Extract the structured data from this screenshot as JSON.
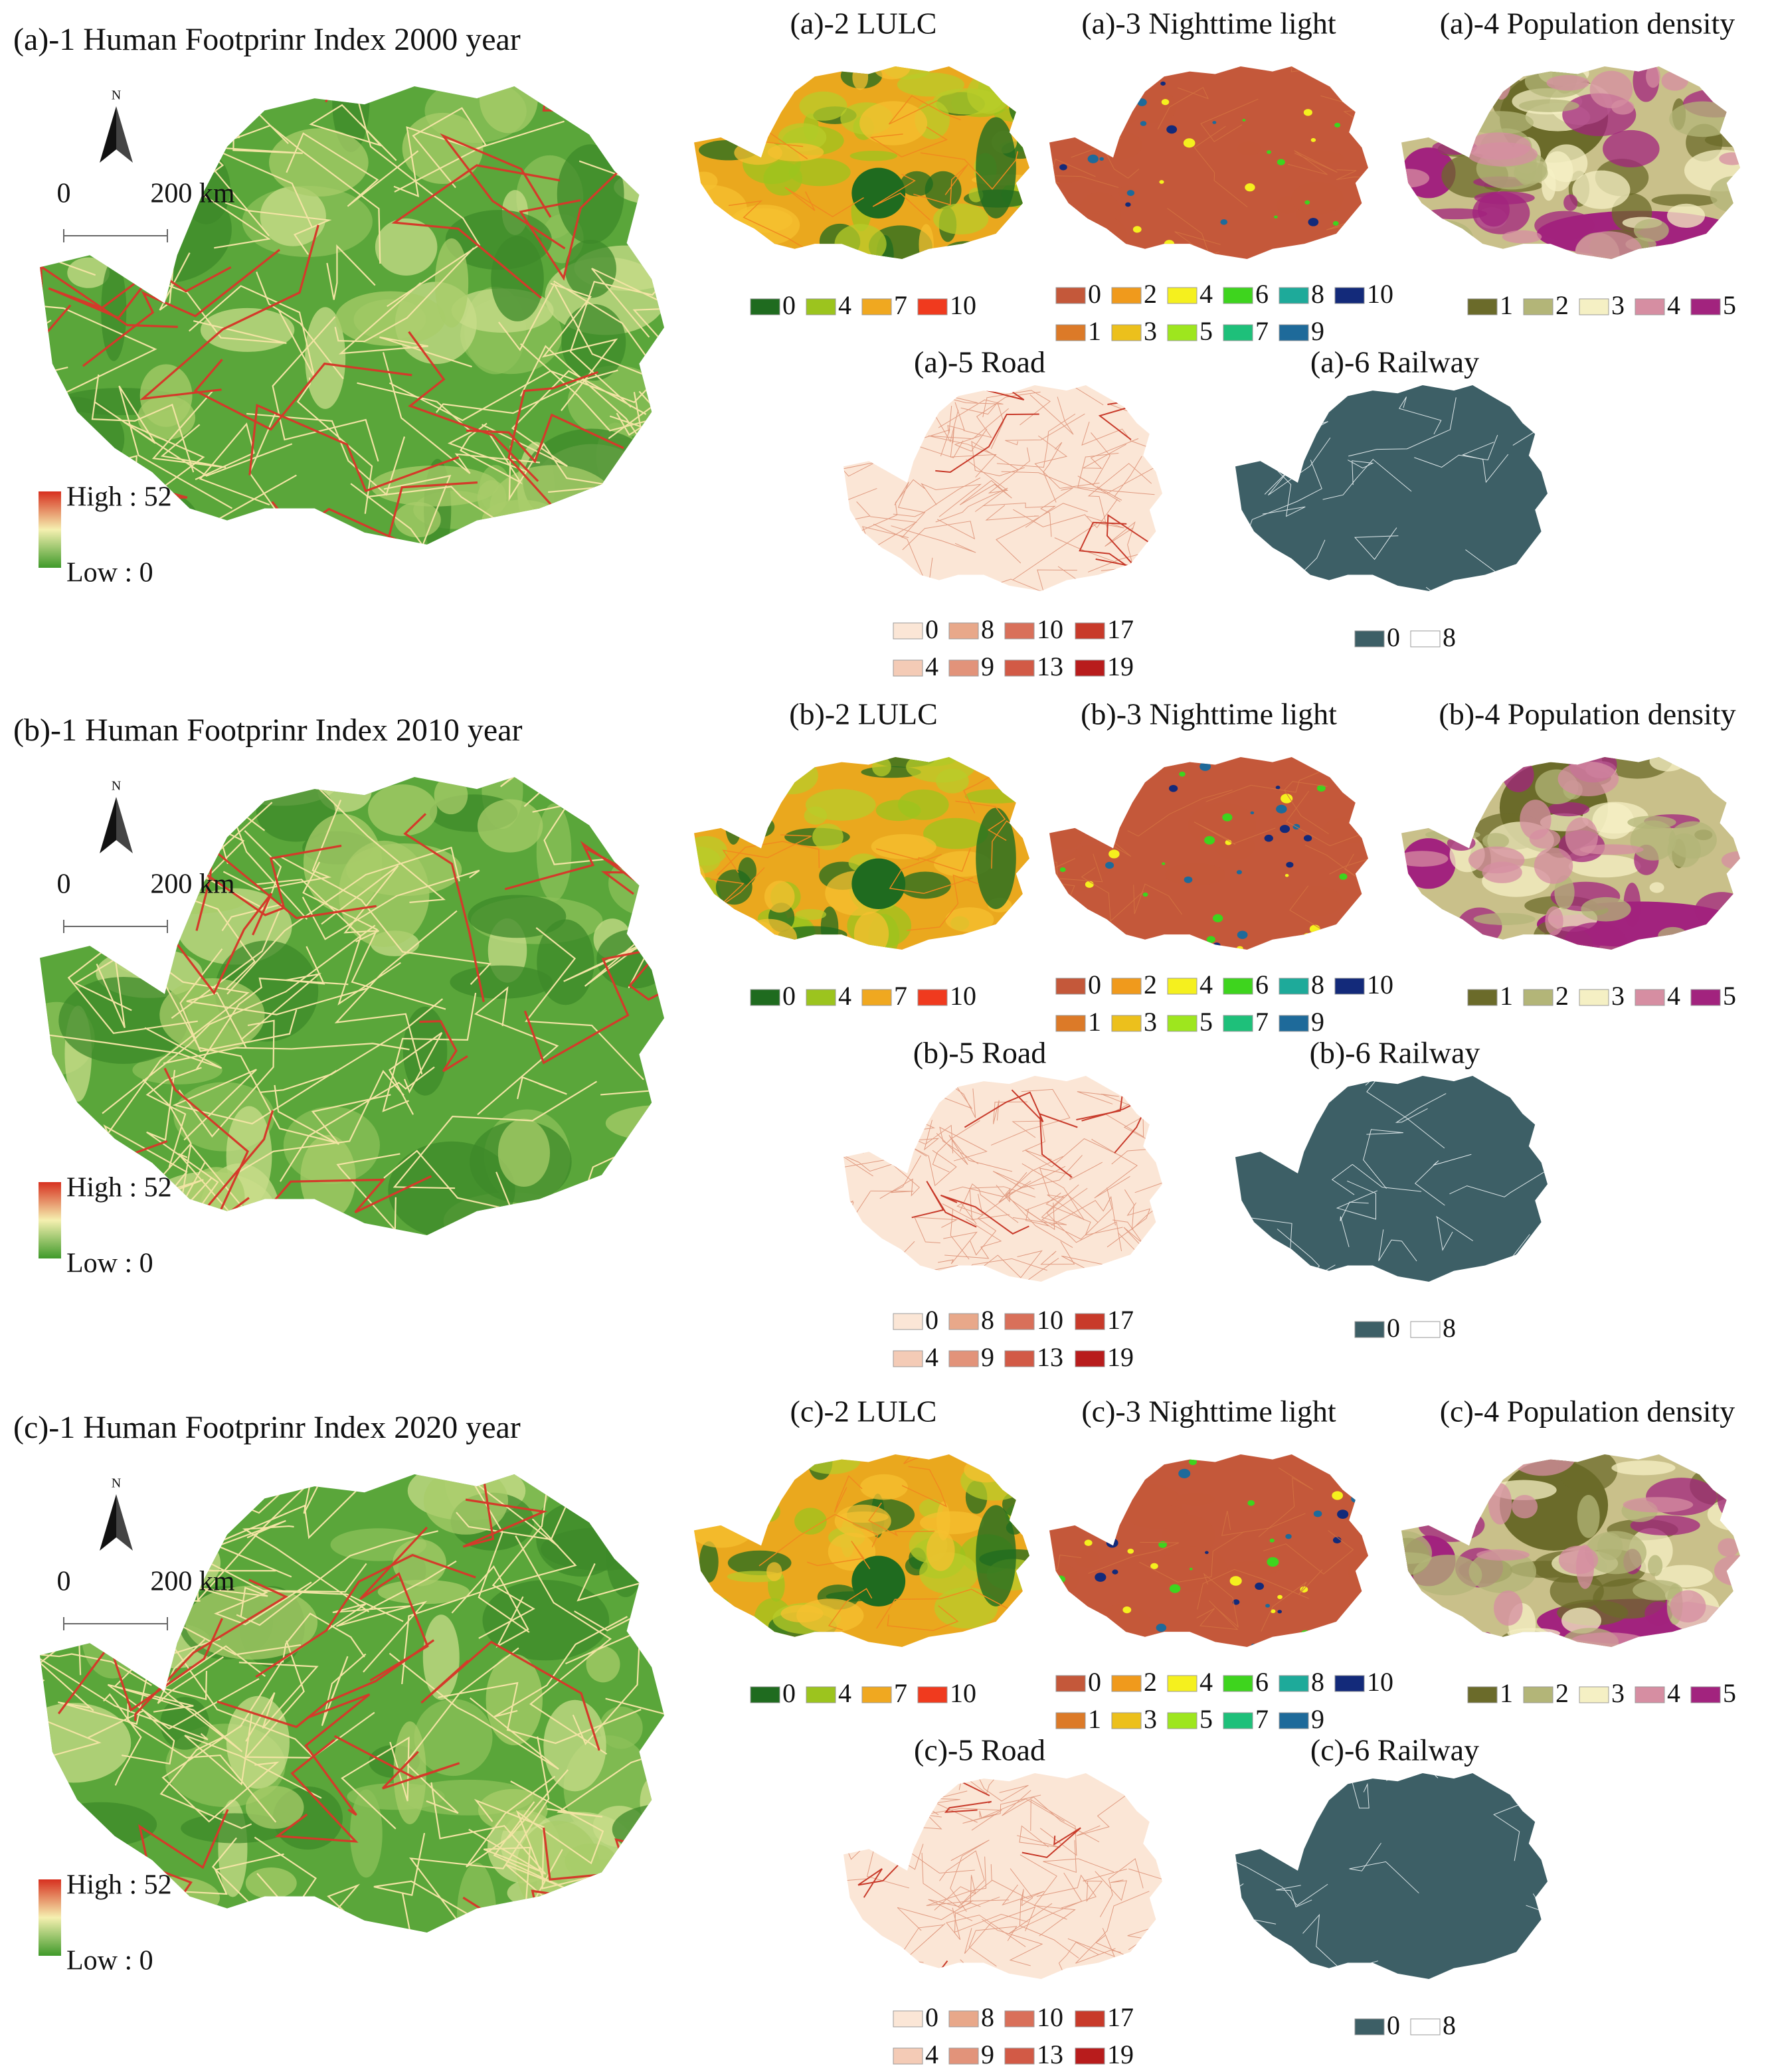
{
  "panels": [
    {
      "hfi": {
        "title": "(a)-1 Human Footprinr Index 2000 year",
        "north": "N",
        "scale_start": "0",
        "scale_end": "200 km",
        "legend_high": "High : 52",
        "legend_low": "Low : 0"
      },
      "lulc": {
        "title": "(a)-2 LULC",
        "legend": [
          [
            {
              "label": "0",
              "color": "#1f6b1f"
            },
            {
              "label": "4",
              "color": "#9cc41e"
            },
            {
              "label": "7",
              "color": "#f0a820"
            },
            {
              "label": "10",
              "color": "#f03a1e"
            }
          ]
        ]
      },
      "ntl": {
        "title": "(a)-3 Nighttime light",
        "legend": [
          [
            {
              "label": "0",
              "color": "#c4583a"
            },
            {
              "label": "2",
              "color": "#f09a1c"
            },
            {
              "label": "4",
              "color": "#f5f01e"
            },
            {
              "label": "6",
              "color": "#3ed41e"
            },
            {
              "label": "8",
              "color": "#1eaa9a"
            },
            {
              "label": "10",
              "color": "#132a7a"
            }
          ],
          [
            {
              "label": "1",
              "color": "#dc7a28"
            },
            {
              "label": "3",
              "color": "#ecc01c"
            },
            {
              "label": "5",
              "color": "#9ee61e"
            },
            {
              "label": "7",
              "color": "#1ec07a"
            },
            {
              "label": "9",
              "color": "#1e6a9a"
            }
          ]
        ]
      },
      "pop": {
        "title": "(a)-4 Population density",
        "legend": [
          [
            {
              "label": "1",
              "color": "#6b6b2a"
            },
            {
              "label": "2",
              "color": "#b3b578"
            },
            {
              "label": "3",
              "color": "#f5f0c4"
            },
            {
              "label": "4",
              "color": "#d68ea2"
            },
            {
              "label": "5",
              "color": "#a2237e"
            }
          ]
        ]
      },
      "road": {
        "title": "(a)-5 Road",
        "legend": [
          [
            {
              "label": "0",
              "color": "#fbe6d6"
            },
            {
              "label": "8",
              "color": "#e8a88a"
            },
            {
              "label": "10",
              "color": "#d9705a"
            },
            {
              "label": "17",
              "color": "#c83a2a"
            }
          ],
          [
            {
              "label": "4",
              "color": "#f4cbb6"
            },
            {
              "label": "9",
              "color": "#e2937a"
            },
            {
              "label": "13",
              "color": "#d25a46"
            },
            {
              "label": "19",
              "color": "#b81c1c"
            }
          ]
        ]
      },
      "rail": {
        "title": "(a)-6 Railway",
        "legend": [
          [
            {
              "label": "0",
              "color": "#3d5f66"
            },
            {
              "label": "8",
              "color": "#ffffff"
            }
          ]
        ]
      }
    },
    {
      "hfi": {
        "title": "(b)-1 Human Footprinr Index 2010 year",
        "north": "N",
        "scale_start": "0",
        "scale_end": "200 km",
        "legend_high": "High : 52",
        "legend_low": "Low : 0"
      },
      "lulc": {
        "title": "(b)-2 LULC",
        "legend": [
          [
            {
              "label": "0",
              "color": "#1f6b1f"
            },
            {
              "label": "4",
              "color": "#9cc41e"
            },
            {
              "label": "7",
              "color": "#f0a820"
            },
            {
              "label": "10",
              "color": "#f03a1e"
            }
          ]
        ]
      },
      "ntl": {
        "title": "(b)-3 Nighttime light",
        "legend": [
          [
            {
              "label": "0",
              "color": "#c4583a"
            },
            {
              "label": "2",
              "color": "#f09a1c"
            },
            {
              "label": "4",
              "color": "#f5f01e"
            },
            {
              "label": "6",
              "color": "#3ed41e"
            },
            {
              "label": "8",
              "color": "#1eaa9a"
            },
            {
              "label": "10",
              "color": "#132a7a"
            }
          ],
          [
            {
              "label": "1",
              "color": "#dc7a28"
            },
            {
              "label": "3",
              "color": "#ecc01c"
            },
            {
              "label": "5",
              "color": "#9ee61e"
            },
            {
              "label": "7",
              "color": "#1ec07a"
            },
            {
              "label": "9",
              "color": "#1e6a9a"
            }
          ]
        ]
      },
      "pop": {
        "title": "(b)-4 Population density",
        "legend": [
          [
            {
              "label": "1",
              "color": "#6b6b2a"
            },
            {
              "label": "2",
              "color": "#b3b578"
            },
            {
              "label": "3",
              "color": "#f5f0c4"
            },
            {
              "label": "4",
              "color": "#d68ea2"
            },
            {
              "label": "5",
              "color": "#a2237e"
            }
          ]
        ]
      },
      "road": {
        "title": "(b)-5 Road",
        "legend": [
          [
            {
              "label": "0",
              "color": "#fbe6d6"
            },
            {
              "label": "8",
              "color": "#e8a88a"
            },
            {
              "label": "10",
              "color": "#d9705a"
            },
            {
              "label": "17",
              "color": "#c83a2a"
            }
          ],
          [
            {
              "label": "4",
              "color": "#f4cbb6"
            },
            {
              "label": "9",
              "color": "#e2937a"
            },
            {
              "label": "13",
              "color": "#d25a46"
            },
            {
              "label": "19",
              "color": "#b81c1c"
            }
          ]
        ]
      },
      "rail": {
        "title": "(b)-6 Railway",
        "legend": [
          [
            {
              "label": "0",
              "color": "#3d5f66"
            },
            {
              "label": "8",
              "color": "#ffffff"
            }
          ]
        ]
      }
    },
    {
      "hfi": {
        "title": "(c)-1 Human Footprinr Index 2020 year",
        "north": "N",
        "scale_start": "0",
        "scale_end": "200 km",
        "legend_high": "High : 52",
        "legend_low": "Low : 0"
      },
      "lulc": {
        "title": "(c)-2 LULC",
        "legend": [
          [
            {
              "label": "0",
              "color": "#1f6b1f"
            },
            {
              "label": "4",
              "color": "#9cc41e"
            },
            {
              "label": "7",
              "color": "#f0a820"
            },
            {
              "label": "10",
              "color": "#f03a1e"
            }
          ]
        ]
      },
      "ntl": {
        "title": "(c)-3 Nighttime light",
        "legend": [
          [
            {
              "label": "0",
              "color": "#c4583a"
            },
            {
              "label": "2",
              "color": "#f09a1c"
            },
            {
              "label": "4",
              "color": "#f5f01e"
            },
            {
              "label": "6",
              "color": "#3ed41e"
            },
            {
              "label": "8",
              "color": "#1eaa9a"
            },
            {
              "label": "10",
              "color": "#132a7a"
            }
          ],
          [
            {
              "label": "1",
              "color": "#dc7a28"
            },
            {
              "label": "3",
              "color": "#ecc01c"
            },
            {
              "label": "5",
              "color": "#9ee61e"
            },
            {
              "label": "7",
              "color": "#1ec07a"
            },
            {
              "label": "9",
              "color": "#1e6a9a"
            }
          ]
        ]
      },
      "pop": {
        "title": "(c)-4 Population density",
        "legend": [
          [
            {
              "label": "1",
              "color": "#6b6b2a"
            },
            {
              "label": "2",
              "color": "#b3b578"
            },
            {
              "label": "3",
              "color": "#f5f0c4"
            },
            {
              "label": "4",
              "color": "#d68ea2"
            },
            {
              "label": "5",
              "color": "#a2237e"
            }
          ]
        ]
      },
      "road": {
        "title": "(c)-5 Road",
        "legend": [
          [
            {
              "label": "0",
              "color": "#fbe6d6"
            },
            {
              "label": "8",
              "color": "#e8a88a"
            },
            {
              "label": "10",
              "color": "#d9705a"
            },
            {
              "label": "17",
              "color": "#c83a2a"
            }
          ],
          [
            {
              "label": "4",
              "color": "#f4cbb6"
            },
            {
              "label": "9",
              "color": "#e2937a"
            },
            {
              "label": "13",
              "color": "#d25a46"
            },
            {
              "label": "19",
              "color": "#b81c1c"
            }
          ]
        ]
      },
      "rail": {
        "title": "(c)-6 Railway",
        "legend": [
          [
            {
              "label": "0",
              "color": "#3d5f66"
            },
            {
              "label": "8",
              "color": "#ffffff"
            }
          ]
        ]
      }
    }
  ]
}
